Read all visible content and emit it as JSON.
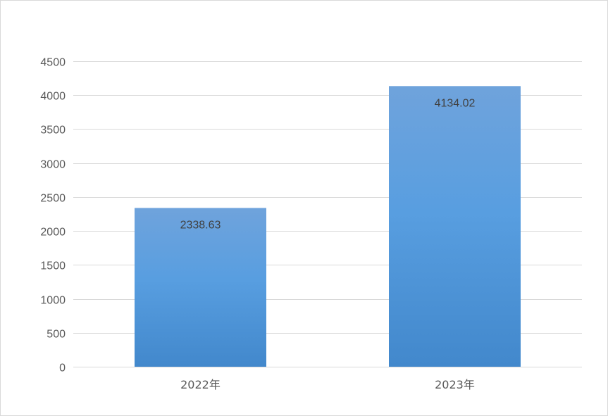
{
  "chart_data": {
    "type": "bar",
    "categories": [
      "2022年",
      "2023年"
    ],
    "values": [
      2338.63,
      4134.02
    ],
    "data_labels": [
      "2338.63",
      "4134.02"
    ],
    "ylim": [
      0,
      4500
    ],
    "yticks": [
      0,
      500,
      1000,
      1500,
      2000,
      2500,
      3000,
      3500,
      4000,
      4500
    ],
    "ytick_labels": [
      "0",
      "500",
      "1000",
      "1500",
      "2000",
      "2500",
      "3000",
      "3500",
      "4000",
      "4500"
    ],
    "grid": true,
    "legend": "none",
    "colors": {
      "bar_top": "#6fa3dc",
      "bar_mid": "#589ee0",
      "bar_bottom": "#4288cc",
      "grid": "#d9d9d9",
      "axis": "#d9d9d9",
      "text": "#595959"
    }
  }
}
